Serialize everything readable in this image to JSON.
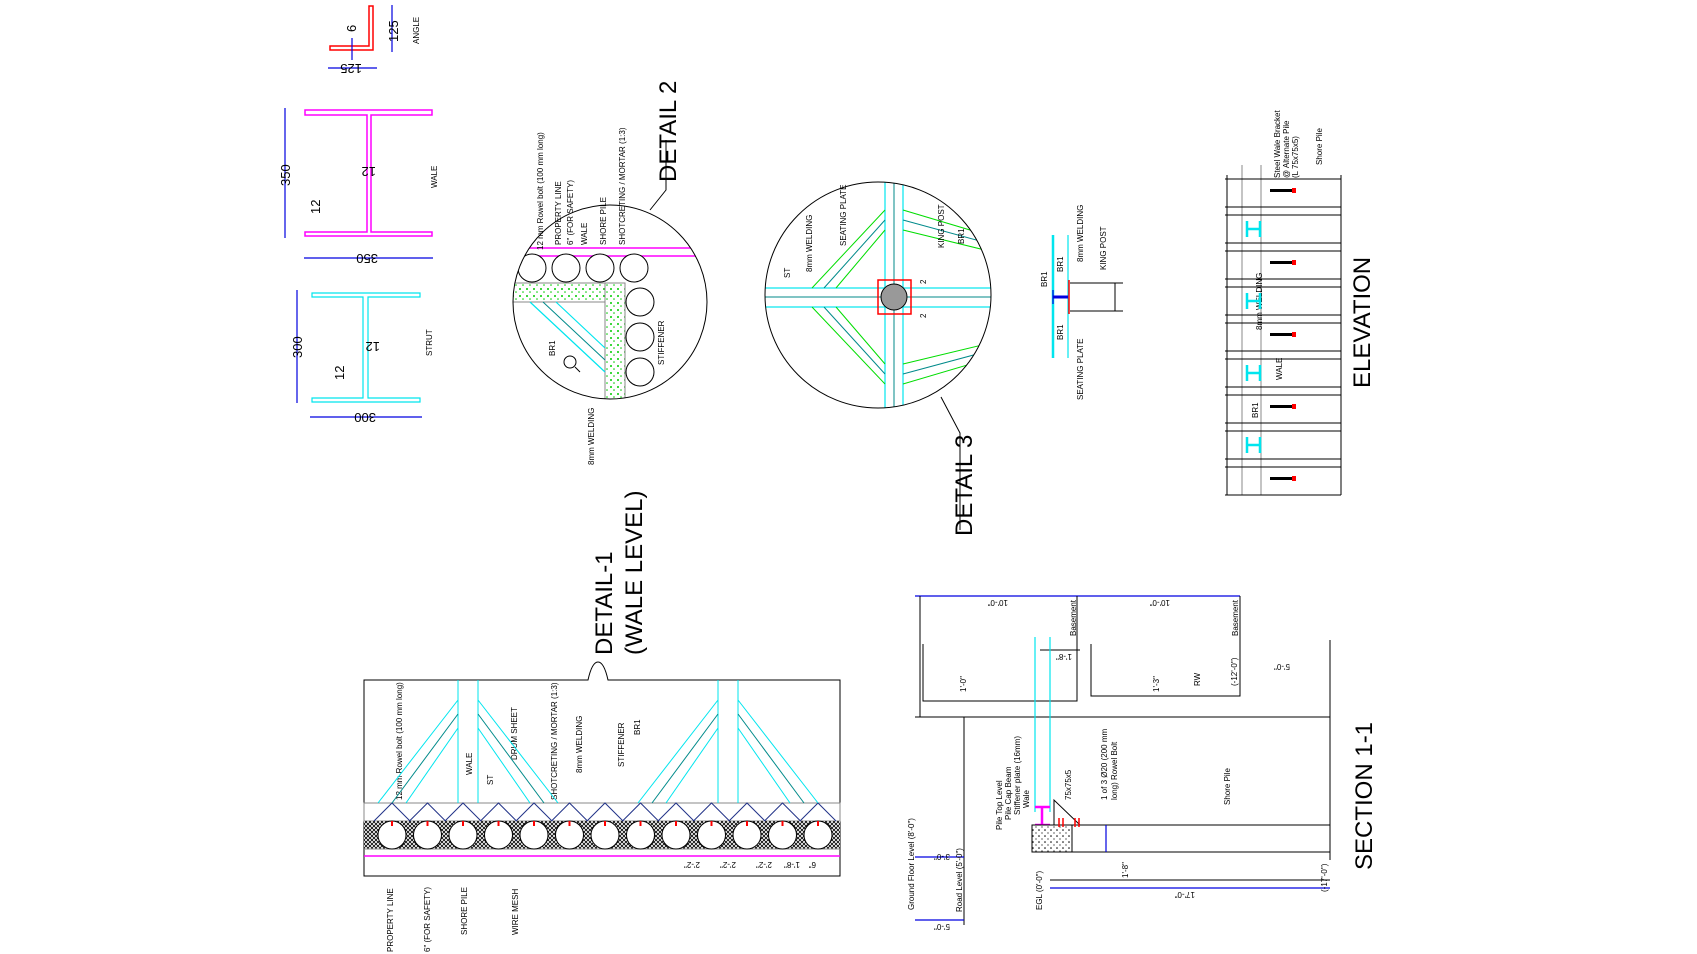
{
  "colors": {
    "wale": "#ff00ff",
    "strut": "#00e5ee",
    "angle": "#ff0000",
    "dimension": "#0000e0",
    "shotcrete": "#00dd00"
  },
  "angle": {
    "title": "ANGLE",
    "dim_thickness": "6",
    "dim_height": "125",
    "dim_width": "125"
  },
  "wale_section": {
    "title": "WALE",
    "dim_height": "350",
    "dim_flange": "12",
    "dim_web": "12",
    "dim_width": "350"
  },
  "strut_section": {
    "title": "STRUT",
    "dim_height": "300",
    "dim_flange": "12",
    "dim_web": "12",
    "dim_width": "300"
  },
  "detail2": {
    "title": "DETAIL 2",
    "labels": [
      "12 mm Rowel bolt (100 mm long)",
      "PROPERTY LINE",
      "6\" (FOR SAFETY)",
      "WALE",
      "SHORE PILE",
      "SHOTCRETING / MORTAR (1:3)",
      "STIFFENER",
      "BR1",
      "8mm WELDING"
    ],
    "zoom_icon": "magnifier-icon"
  },
  "detail3": {
    "title": "DETAIL 3",
    "labels": [
      "ST",
      "8mm WELDING",
      "SEATING PLATE",
      "KING POST",
      "BR1"
    ],
    "weld_size_1": "2",
    "weld_size_2": "2"
  },
  "bracket_detail": {
    "labels": [
      "BR1",
      "BR1",
      "BR1",
      "8mm WELDING",
      "KING POST",
      "SEATING PLATE"
    ]
  },
  "elevation": {
    "title": "ELEVATION",
    "labels": [
      "Steel Wale Bracket",
      "@ Alternate Pile",
      "(L 75x75x5)",
      "Shore Pile",
      "8mm WELDING",
      "WALE",
      "BR1"
    ]
  },
  "detail1": {
    "title": "DETAIL-1",
    "subtitle": "(WALE LEVEL)",
    "labels": [
      "12 mm Rowel bolt (100 mm long)",
      "WALE",
      "ST",
      "DRUM SHEET",
      "SHOTCRETING / MORTAR (1:3)",
      "8mm WELDING",
      "STIFFENER",
      "BR1"
    ],
    "bottom_labels": [
      "PROPERTY LINE",
      "6\" (FOR SAFETY)",
      "SHORE PILE",
      "WIRE MESH"
    ],
    "dimensions": [
      "2'-2\"",
      "2'-2\"",
      "2'-2\"",
      "1'-8\"",
      "6\""
    ]
  },
  "section": {
    "title": "SECTION 1-1",
    "dimensions": {
      "top_left": "10'-0\"",
      "top_right": "10'-0\"",
      "wale_gap": "1'-8\"",
      "slab_left": "1'-0\"",
      "slab_right": "1'-3\"",
      "basement_level": "(-12'-0\")",
      "right_offset": "5'-0\"",
      "road_offset": "3'-0\"",
      "bottom_left": "5'-0\"",
      "pile_cap": "1'-8\"",
      "pile_length": "17'-0\"",
      "pile_tip": "(-17'-0\")"
    },
    "labels": {
      "basement_1": "Basement",
      "basement_2": "Basement",
      "rw": "RW",
      "ground_floor": "Ground Floor Level (8'-0\")",
      "road_level": "Road Level (5'-0\")",
      "egl": "EGL (0'-0\")",
      "pile_top": "Pile Top Level",
      "pile_cap_beam": "Pile Cap Beam",
      "stiffener_plate": "Stiffener plate (16mm)",
      "wale": "Wale",
      "angle": "75x75x5",
      "bolt_1": "1 of 3 Ø20 (200 mm",
      "bolt_2": "long) Rowel Bolt",
      "shore_pile": "Shore Pile"
    }
  }
}
